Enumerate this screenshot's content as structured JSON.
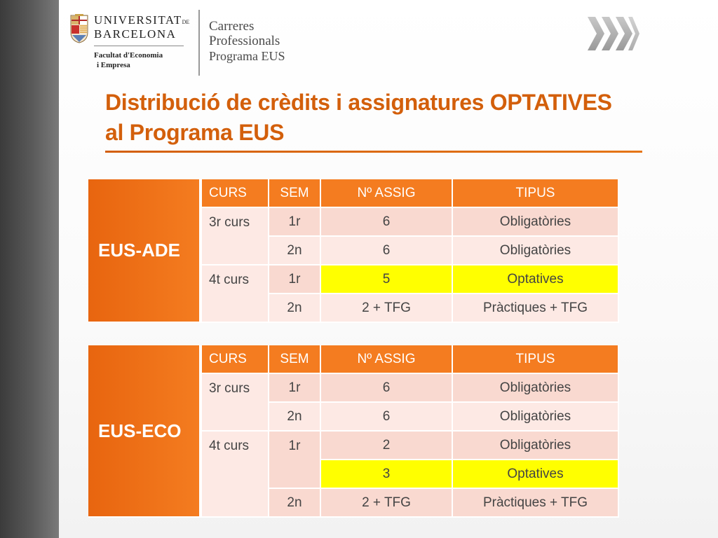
{
  "header": {
    "university_line1": "UNIVERSITAT",
    "university_line1_suffix": "DE",
    "university_line2": "BARCELONA",
    "faculty_line1": "Facultat d'Economia",
    "faculty_line2": "i Empresa",
    "careers_line1": "Carreres",
    "careers_line2": "Professionals",
    "careers_line3": "Programa EUS"
  },
  "title": {
    "line1": "Distribució de crèdits i assignatures OPTATIVES",
    "line2": "al Programa EUS"
  },
  "colors": {
    "accent_orange": "#f47c20",
    "title_orange": "#d35f0b",
    "cell_pink": "#f9d9d0",
    "highlight_yellow": "#ffff00",
    "left_band": "#4a4a4a"
  },
  "tables": {
    "ade": {
      "program": "EUS-ADE",
      "headers": [
        "CURS",
        "SEM",
        "Nº ASSIG",
        "TIPUS"
      ],
      "rows": [
        {
          "curs": "3r curs",
          "sem": "1r",
          "assig": "6",
          "tipus": "Obligatòries"
        },
        {
          "curs": "",
          "sem": "2n",
          "assig": "6",
          "tipus": "Obligatòries"
        },
        {
          "curs": "4t curs",
          "sem": "1r",
          "assig": "5",
          "tipus": "Optatives"
        },
        {
          "curs": "",
          "sem": "2n",
          "assig": "2 + TFG",
          "tipus": "Pràctiques + TFG"
        }
      ]
    },
    "eco": {
      "program": "EUS-ECO",
      "headers": [
        "CURS",
        "SEM",
        "Nº ASSIG",
        "TIPUS"
      ],
      "rows": [
        {
          "curs": "3r curs",
          "sem": "1r",
          "assig": "6",
          "tipus": "Obligatòries"
        },
        {
          "curs": "",
          "sem": "2n",
          "assig": "6",
          "tipus": "Obligatòries"
        },
        {
          "curs": "4t curs",
          "sem": "1r",
          "assig": "2",
          "tipus": "Obligatòries"
        },
        {
          "curs": "",
          "sem": "",
          "assig": "3",
          "tipus": "Optatives"
        },
        {
          "curs": "",
          "sem": "2n",
          "assig": "2 + TFG",
          "tipus": "Pràctiques + TFG"
        }
      ]
    }
  }
}
